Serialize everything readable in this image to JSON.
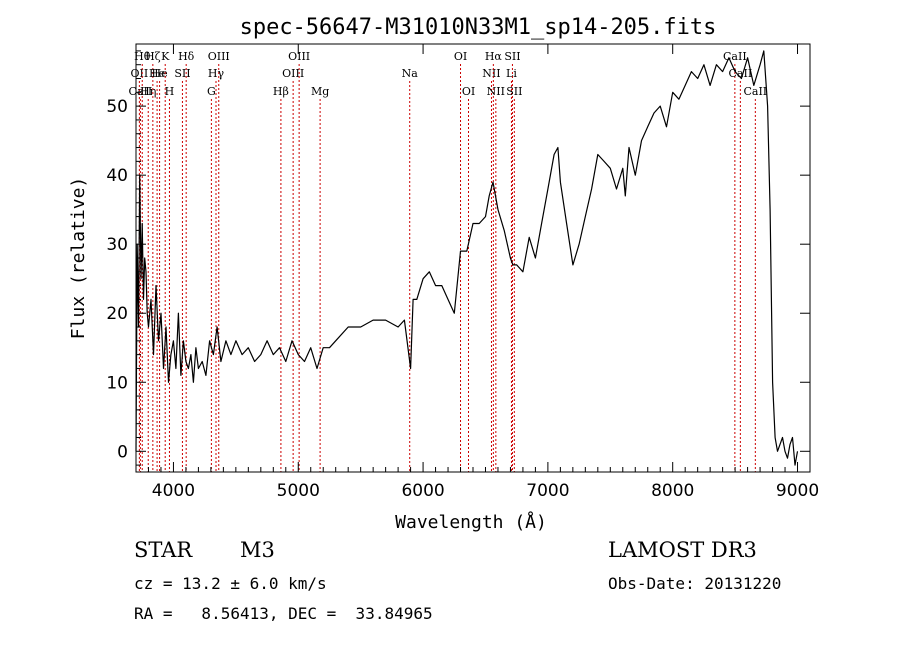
{
  "chart_data": {
    "type": "line",
    "title": "spec-56647-M31010N33M1_sp14-205.fits",
    "xlabel": "Wavelength (Å)",
    "ylabel": "Flux (relative)",
    "xlim": [
      3700,
      9100
    ],
    "ylim": [
      -3,
      59
    ],
    "xticks": [
      4000,
      5000,
      6000,
      7000,
      8000,
      9000
    ],
    "yticks": [
      0,
      10,
      20,
      30,
      40,
      50
    ],
    "grid": false,
    "line_color": "#000000",
    "marker_color": "#cc0000",
    "series": [
      {
        "x": [
          3700,
          3710,
          3720,
          3730,
          3740,
          3750,
          3760,
          3770,
          3780,
          3790,
          3800,
          3820,
          3840,
          3860,
          3880,
          3900,
          3920,
          3940,
          3960,
          3980,
          4000,
          4020,
          4040,
          4060,
          4080,
          4100,
          4120,
          4140,
          4160,
          4180,
          4200,
          4230,
          4260,
          4290,
          4320,
          4350,
          4380,
          4420,
          4460,
          4500,
          4550,
          4600,
          4650,
          4700,
          4750,
          4800,
          4850,
          4900,
          4950,
          5000,
          5050,
          5100,
          5150,
          5200,
          5250,
          5300,
          5400,
          5500,
          5600,
          5700,
          5800,
          5850,
          5900,
          5920,
          5950,
          6000,
          6050,
          6100,
          6150,
          6200,
          6250,
          6300,
          6350,
          6400,
          6450,
          6500,
          6530,
          6560,
          6580,
          6600,
          6650,
          6700,
          6720,
          6750,
          6800,
          6850,
          6900,
          6950,
          7000,
          7050,
          7080,
          7100,
          7150,
          7200,
          7250,
          7300,
          7350,
          7400,
          7450,
          7500,
          7550,
          7600,
          7620,
          7650,
          7700,
          7750,
          7800,
          7850,
          7900,
          7950,
          8000,
          8050,
          8100,
          8150,
          8200,
          8250,
          8300,
          8350,
          8400,
          8450,
          8500,
          8550,
          8600,
          8650,
          8700,
          8730,
          8760,
          8780,
          8800,
          8820,
          8840,
          8860,
          8880,
          8900,
          8920,
          8940,
          8960,
          8980,
          9000
        ],
        "values": [
          0,
          30,
          18,
          40,
          25,
          33,
          22,
          28,
          26,
          20,
          18,
          22,
          14,
          24,
          16,
          20,
          12,
          18,
          10,
          14,
          16,
          12,
          20,
          11,
          16,
          13,
          12,
          14,
          10,
          15,
          12,
          13,
          11,
          16,
          14,
          18,
          13,
          16,
          14,
          16,
          14,
          15,
          13,
          14,
          16,
          14,
          15,
          13,
          16,
          14,
          13,
          15,
          12,
          15,
          15,
          16,
          18,
          18,
          19,
          19,
          18,
          19,
          12,
          22,
          22,
          25,
          26,
          24,
          24,
          22,
          20,
          29,
          29,
          33,
          33,
          34,
          37,
          39,
          37,
          35,
          32,
          28,
          27,
          27,
          26,
          31,
          28,
          33,
          38,
          43,
          44,
          39,
          33,
          27,
          30,
          34,
          38,
          43,
          42,
          41,
          38,
          41,
          37,
          44,
          40,
          45,
          47,
          49,
          50,
          47,
          52,
          51,
          53,
          55,
          54,
          56,
          53,
          56,
          55,
          57,
          55,
          54,
          57,
          53,
          56,
          58,
          50,
          35,
          10,
          2,
          0,
          1,
          2,
          0,
          -1,
          1,
          2,
          -2,
          0
        ]
      }
    ],
    "line_markers": [
      {
        "wavelength": 3727,
        "label": "OII",
        "row": 1
      },
      {
        "wavelength": 3735,
        "label": "CaII",
        "row": 2
      },
      {
        "wavelength": 3750,
        "label": "Hθ",
        "row": 0
      },
      {
        "wavelength": 3798,
        "label": "Hη",
        "row": 2
      },
      {
        "wavelength": 3835,
        "label": "Hζ",
        "row": 0
      },
      {
        "wavelength": 3869,
        "label": "He",
        "row": 1
      },
      {
        "wavelength": 3889,
        "label": "He",
        "row": 1
      },
      {
        "wavelength": 3934,
        "label": "K",
        "row": 0
      },
      {
        "wavelength": 3968,
        "label": "H",
        "row": 2
      },
      {
        "wavelength": 4072,
        "label": "SII",
        "row": 1
      },
      {
        "wavelength": 4102,
        "label": "Hδ",
        "row": 0
      },
      {
        "wavelength": 4304,
        "label": "G",
        "row": 2
      },
      {
        "wavelength": 4341,
        "label": "Hγ",
        "row": 1
      },
      {
        "wavelength": 4363,
        "label": "OIII",
        "row": 0
      },
      {
        "wavelength": 4861,
        "label": "Hβ",
        "row": 2
      },
      {
        "wavelength": 4959,
        "label": "OIII",
        "row": 1
      },
      {
        "wavelength": 5007,
        "label": "OIII",
        "row": 0
      },
      {
        "wavelength": 5175,
        "label": "Mg",
        "row": 2
      },
      {
        "wavelength": 5893,
        "label": "Na",
        "row": 1
      },
      {
        "wavelength": 6300,
        "label": "OI",
        "row": 0
      },
      {
        "wavelength": 6364,
        "label": "OI",
        "row": 2
      },
      {
        "wavelength": 6548,
        "label": "NII",
        "row": 1
      },
      {
        "wavelength": 6563,
        "label": "Hα",
        "row": 0
      },
      {
        "wavelength": 6583,
        "label": "NII",
        "row": 2
      },
      {
        "wavelength": 6708,
        "label": "Li",
        "row": 1
      },
      {
        "wavelength": 6716,
        "label": "SII",
        "row": 0
      },
      {
        "wavelength": 6731,
        "label": "SII",
        "row": 2
      },
      {
        "wavelength": 8498,
        "label": "CaII",
        "row": 0
      },
      {
        "wavelength": 8542,
        "label": "CaII",
        "row": 1
      },
      {
        "wavelength": 8662,
        "label": "CaII",
        "row": 2
      }
    ]
  },
  "footer": {
    "object_type": "STAR",
    "subclass": "M3",
    "survey": "LAMOST DR3",
    "cz": "cz = 13.2 ± 6.0 km/s",
    "obs_date": "Obs-Date: 20131220",
    "radec": "RA =   8.56413, DEC =  33.84965"
  }
}
